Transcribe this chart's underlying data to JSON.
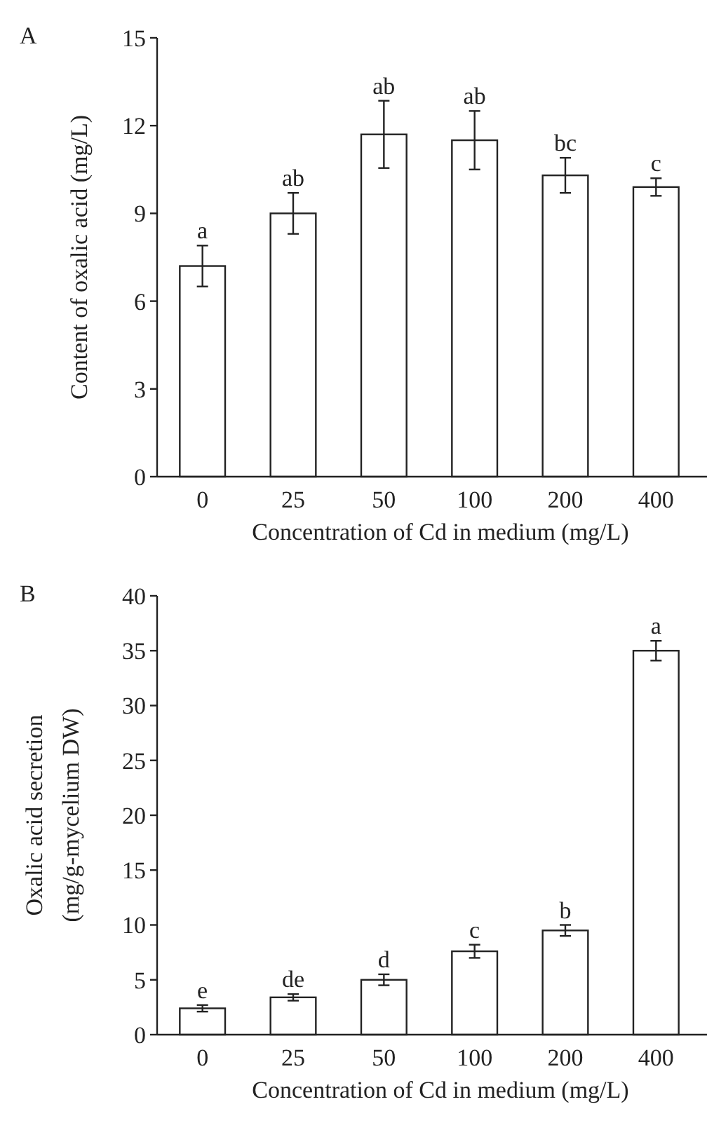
{
  "chart_data": [
    {
      "type": "bar",
      "title": "A",
      "categories": [
        "0",
        "25",
        "50",
        "100",
        "200",
        "400"
      ],
      "values": [
        7.2,
        9.0,
        11.7,
        11.5,
        10.3,
        9.9
      ],
      "errors": [
        0.7,
        0.7,
        1.15,
        1.0,
        0.6,
        0.3
      ],
      "color": "#ffffff",
      "ylim": [
        0,
        15
      ],
      "yticks": [
        0,
        3,
        6,
        9,
        12,
        15
      ],
      "ylabel": "Content of oxalic acid (mg/L)",
      "xlabel": "Concentration of Cd in medium (mg/L)",
      "grid": false,
      "annotations": [
        {
          "text": "a",
          "x": "0",
          "y": 7.9
        },
        {
          "text": "ab",
          "x": "25",
          "y": 9.7
        },
        {
          "text": "ab",
          "x": "50",
          "y": 12.85
        },
        {
          "text": "ab",
          "x": "100",
          "y": 12.5
        },
        {
          "text": "bc",
          "x": "200",
          "y": 10.9
        },
        {
          "text": "c",
          "x": "400",
          "y": 10.2
        }
      ]
    },
    {
      "type": "bar",
      "title": "B",
      "categories": [
        "0",
        "25",
        "50",
        "100",
        "200",
        "400"
      ],
      "values": [
        2.4,
        3.4,
        5.0,
        7.6,
        9.5,
        35.0
      ],
      "errors": [
        0.3,
        0.3,
        0.5,
        0.6,
        0.5,
        0.9
      ],
      "color": "#ffffff",
      "ylim": [
        0,
        40
      ],
      "yticks": [
        0,
        5,
        10,
        15,
        20,
        25,
        30,
        35,
        40
      ],
      "ylabel": "Oxalic acid secretion\n(mg/g-mycelium DW)",
      "xlabel": "Concentration of Cd in medium (mg/L)",
      "grid": false,
      "annotations": [
        {
          "text": "e",
          "x": "0",
          "y": 2.7
        },
        {
          "text": "de",
          "x": "25",
          "y": 3.7
        },
        {
          "text": "d",
          "x": "50",
          "y": 5.5
        },
        {
          "text": "c",
          "x": "100",
          "y": 8.2
        },
        {
          "text": "b",
          "x": "200",
          "y": 10.0
        },
        {
          "text": "a",
          "x": "400",
          "y": 35.9
        }
      ]
    }
  ]
}
